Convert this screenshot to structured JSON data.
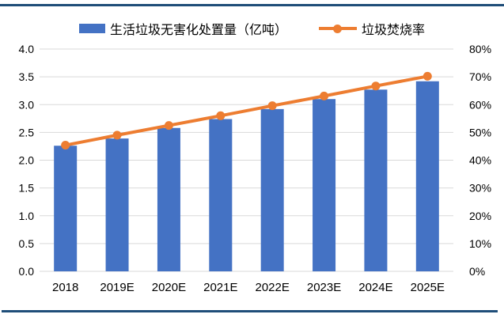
{
  "colors": {
    "bar": "#4472C4",
    "line": "#ED7D31",
    "divider": "#1F4E79",
    "gridline": "#D9D9D9",
    "text": "#000000",
    "background": "#ffffff"
  },
  "chart_data": {
    "type": "combo",
    "title": "",
    "legend_position": "top",
    "grid": true,
    "categories": [
      "2018",
      "2019E",
      "2020E",
      "2021E",
      "2022E",
      "2023E",
      "2024E",
      "2025E"
    ],
    "series": [
      {
        "name": "生活垃圾无害化处置量（亿吨）",
        "type": "bar",
        "axis": "left",
        "color": "#4472C4",
        "values": [
          2.26,
          2.39,
          2.58,
          2.74,
          2.92,
          3.1,
          3.27,
          3.42
        ]
      },
      {
        "name": "垃圾焚烧率",
        "type": "line",
        "axis": "right",
        "color": "#ED7D31",
        "values": [
          45.4,
          49.0,
          52.5,
          56.0,
          59.6,
          63.1,
          66.7,
          70.2
        ]
      }
    ],
    "left_axis": {
      "min": 0.0,
      "max": 4.0,
      "step": 0.5,
      "tick_labels": [
        "0.0",
        "0.5",
        "1.0",
        "1.5",
        "2.0",
        "2.5",
        "3.0",
        "3.5",
        "4.0"
      ]
    },
    "right_axis": {
      "min": 0,
      "max": 80,
      "step": 10,
      "tick_labels": [
        "0%",
        "10%",
        "20%",
        "30%",
        "40%",
        "50%",
        "60%",
        "70%",
        "80%"
      ]
    }
  }
}
